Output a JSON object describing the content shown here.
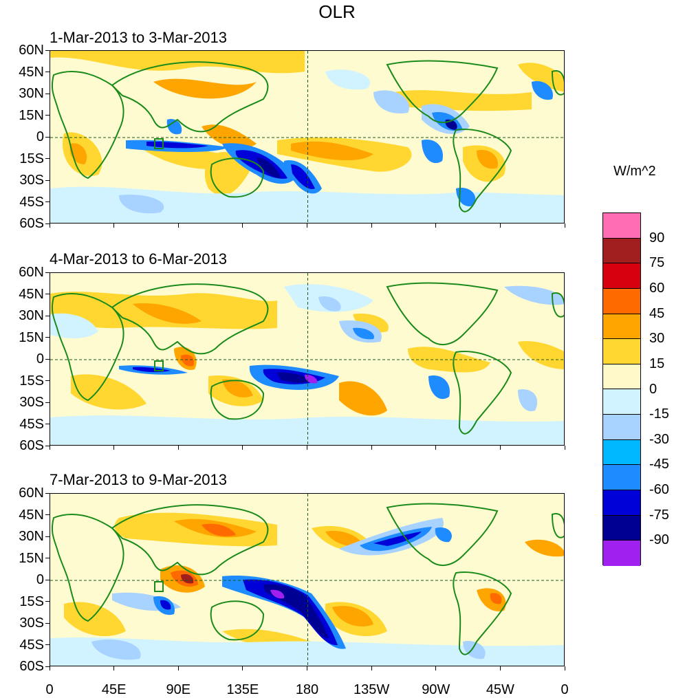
{
  "title": "OLR",
  "units": "W/m^2",
  "panels": [
    {
      "period": "1-Mar-2013 to 3-Mar-2013"
    },
    {
      "period": "4-Mar-2013 to 6-Mar-2013"
    },
    {
      "period": "7-Mar-2013 to 9-Mar-2013"
    }
  ],
  "lat_labels": [
    "60N",
    "45N",
    "30N",
    "15N",
    "0",
    "15S",
    "30S",
    "45S",
    "60S"
  ],
  "lon_labels": [
    "0",
    "45E",
    "90E",
    "135E",
    "180",
    "135W",
    "90W",
    "45W",
    "0"
  ],
  "colorbar": {
    "labels": [
      "90",
      "75",
      "60",
      "45",
      "30",
      "15",
      "0",
      "-15",
      "-30",
      "-45",
      "-60",
      "-75",
      "-90"
    ],
    "colors": [
      "#ff6eb4",
      "#a01e1e",
      "#d7000f",
      "#ff6a00",
      "#ffa500",
      "#ffd730",
      "#fff8c8",
      "#d0f3ff",
      "#a8d2ff",
      "#00b8ff",
      "#1e8cff",
      "#0000d8",
      "#000093",
      "#a020f0"
    ]
  }
}
